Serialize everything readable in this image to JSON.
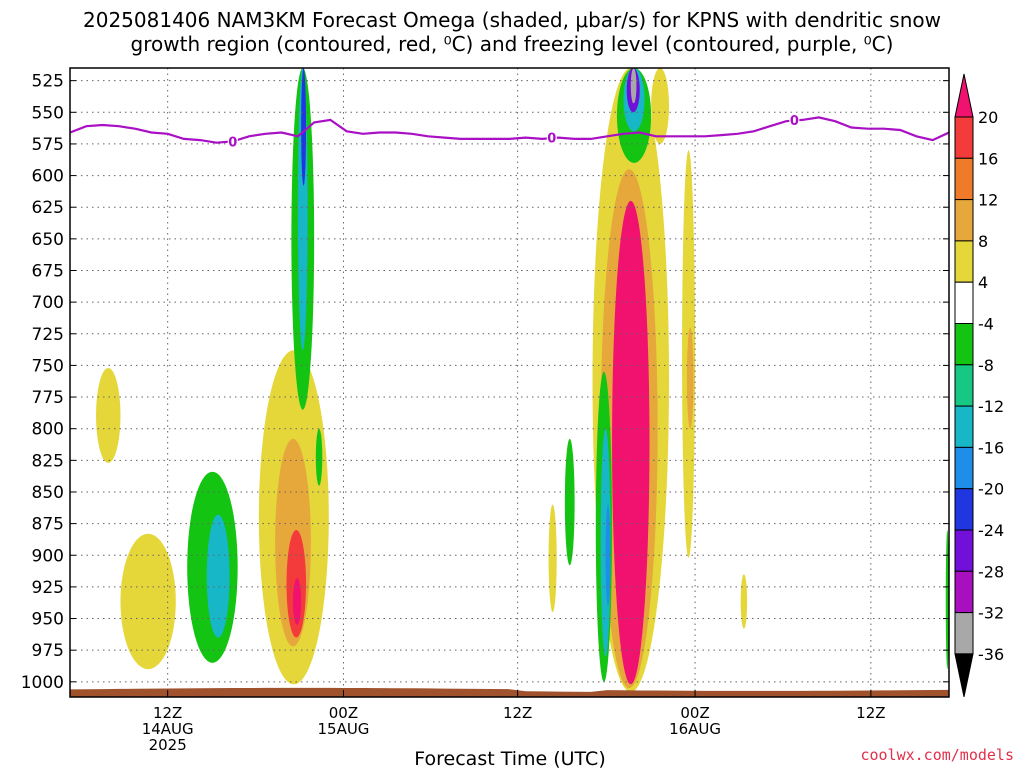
{
  "title_line1": "2025081406 NAM3KM Forecast Omega (shaded, μbar/s) for KPNS with dendritic snow",
  "title_line2": "growth region (contoured, red, ⁰C) and freezing level (contoured, purple, ⁰C)",
  "credit": "coolwx.com/models",
  "chart_data": {
    "type": "heatmap",
    "xlabel": "Forecast Time (UTC)",
    "x_hours_range": [
      0,
      54
    ],
    "ylabel": "",
    "ylim": [
      1012,
      515
    ],
    "yticks": [
      525,
      550,
      575,
      600,
      625,
      650,
      675,
      700,
      725,
      750,
      775,
      800,
      825,
      850,
      875,
      900,
      925,
      950,
      975,
      1000
    ],
    "xticks": [
      {
        "hour": 6,
        "lines": [
          "12Z",
          "14AUG",
          "2025"
        ]
      },
      {
        "hour": 16.8,
        "lines": [
          "00Z",
          "15AUG"
        ]
      },
      {
        "hour": 27.5,
        "lines": [
          "12Z"
        ]
      },
      {
        "hour": 38.4,
        "lines": [
          "00Z",
          "16AUG"
        ]
      },
      {
        "hour": 49.2,
        "lines": [
          "12Z"
        ]
      }
    ],
    "grid": true,
    "colorbar": {
      "labels": [
        "20",
        "16",
        "12",
        "8",
        "4",
        "-4",
        "-8",
        "-12",
        "-16",
        "-20",
        "-24",
        "-28",
        "-32",
        "-36"
      ],
      "colors": [
        "#f0126e",
        "#f43b3b",
        "#ee7a2a",
        "#e6a83a",
        "#e5d73a",
        "#ffffff",
        "#13c413",
        "#17c784",
        "#17b7c8",
        "#1f8ee8",
        "#1f36e0",
        "#7010d8",
        "#a80fbe",
        "#a8a8a8",
        "#000000"
      ]
    },
    "freezing_level": {
      "label": "0",
      "color": "#a90fc4",
      "hours": [
        0,
        1,
        2,
        3,
        4,
        5,
        6,
        7,
        8,
        9,
        10,
        11,
        12,
        13,
        14,
        15,
        16,
        17,
        18,
        19,
        20,
        21,
        22,
        23,
        24,
        25,
        26,
        27,
        28,
        29,
        30,
        31,
        32,
        33,
        34,
        35,
        36,
        37,
        38,
        39,
        40,
        41,
        42,
        43,
        44,
        45,
        46,
        47,
        48,
        49,
        50,
        51,
        52,
        53,
        54
      ],
      "pressure": [
        566,
        561,
        560,
        561,
        563,
        566,
        567,
        571,
        572,
        574,
        573,
        569,
        567,
        566,
        569,
        558,
        556,
        565,
        567,
        566,
        566,
        567,
        569,
        570,
        571,
        571,
        571,
        571,
        570,
        571,
        570,
        571,
        571,
        569,
        567,
        566,
        569,
        569,
        569,
        569,
        568,
        567,
        565,
        561,
        557,
        556,
        554,
        557,
        562,
        563,
        563,
        564,
        569,
        572,
        566
      ]
    },
    "omega_regions": [
      {
        "hours": [
          1.6,
          3.1
        ],
        "p": [
          752,
          827
        ],
        "value": 5
      },
      {
        "hours": [
          3.1,
          6.5
        ],
        "p": [
          883,
          990
        ],
        "value": 5
      },
      {
        "hours": [
          7.2,
          10.3
        ],
        "p": [
          834,
          985
        ],
        "value": -6
      },
      {
        "hours": [
          8.4,
          9.8
        ],
        "p": [
          868,
          965
        ],
        "value": -14
      },
      {
        "hours": [
          11.6,
          15.9
        ],
        "p": [
          738,
          1002
        ],
        "value": 6
      },
      {
        "hours": [
          12.6,
          14.8
        ],
        "p": [
          808,
          972
        ],
        "value": 11
      },
      {
        "hours": [
          13.3,
          14.5
        ],
        "p": [
          880,
          965
        ],
        "value": 17
      },
      {
        "hours": [
          13.7,
          14.2
        ],
        "p": [
          918,
          955
        ],
        "value": 20
      },
      {
        "hours": [
          13.6,
          15.0
        ],
        "p": [
          515,
          785
        ],
        "value": -8
      },
      {
        "hours": [
          14.0,
          14.6
        ],
        "p": [
          515,
          738
        ],
        "value": -15
      },
      {
        "hours": [
          14.2,
          14.5
        ],
        "p": [
          515,
          608
        ],
        "value": -22
      },
      {
        "hours": [
          15.1,
          15.5
        ],
        "p": [
          800,
          845
        ],
        "value": -6
      },
      {
        "hours": [
          29.4,
          29.9
        ],
        "p": [
          860,
          945
        ],
        "value": 5
      },
      {
        "hours": [
          30.4,
          31.0
        ],
        "p": [
          808,
          908
        ],
        "value": -7
      },
      {
        "hours": [
          32.1,
          36.8
        ],
        "p": [
          515,
          1008
        ],
        "value": 6
      },
      {
        "hours": [
          32.6,
          36.1
        ],
        "p": [
          595,
          1005
        ],
        "value": 10
      },
      {
        "hours": [
          33.3,
          35.6
        ],
        "p": [
          620,
          1002
        ],
        "value": 20
      },
      {
        "hours": [
          32.3,
          33.3
        ],
        "p": [
          755,
          1000
        ],
        "value": -8
      },
      {
        "hours": [
          32.6,
          33.2
        ],
        "p": [
          800,
          980
        ],
        "value": -14
      },
      {
        "hours": [
          32.9,
          33.2
        ],
        "p": [
          860,
          940
        ],
        "value": -20
      },
      {
        "hours": [
          33.6,
          35.7
        ],
        "p": [
          515,
          590
        ],
        "value": -8
      },
      {
        "hours": [
          34.0,
          35.3
        ],
        "p": [
          515,
          565
        ],
        "value": -16
      },
      {
        "hours": [
          34.2,
          35.0
        ],
        "p": [
          515,
          550
        ],
        "value": -28
      },
      {
        "hours": [
          34.45,
          34.8
        ],
        "p": [
          515,
          543
        ],
        "value": -36
      },
      {
        "hours": [
          35.7,
          36.8
        ],
        "p": [
          515,
          575
        ],
        "value": 5
      },
      {
        "hours": [
          36.2,
          36.7
        ],
        "p": [
          732,
          812
        ],
        "value": 5
      },
      {
        "hours": [
          37.6,
          38.4
        ],
        "p": [
          580,
          902
        ],
        "value": 5
      },
      {
        "hours": [
          37.9,
          38.3
        ],
        "p": [
          720,
          800
        ],
        "value": 9
      },
      {
        "hours": [
          41.2,
          41.6
        ],
        "p": [
          915,
          958
        ],
        "value": 5
      },
      {
        "hours": [
          53.8,
          54
        ],
        "p": [
          880,
          990
        ],
        "value": -7
      }
    ]
  }
}
